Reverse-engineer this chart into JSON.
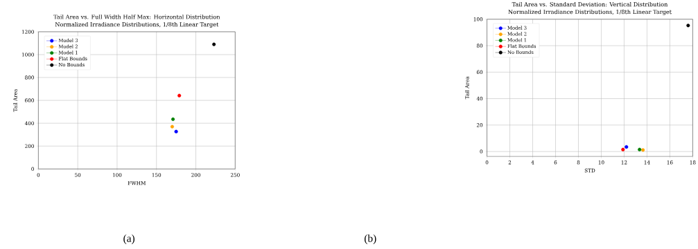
{
  "chart_data": [
    {
      "type": "scatter",
      "title": "Tail Area vs. Full Width Half Max: Horizontal Distribution",
      "subtitle": "Normalized Irradiance Distributions, 1/8th Linear Target",
      "xlabel": "FWHM",
      "ylabel": "Tail Area",
      "xlim": [
        0,
        250
      ],
      "ylim": [
        0,
        1200
      ],
      "xticks": [
        0,
        50,
        100,
        150,
        200,
        250
      ],
      "yticks": [
        0,
        200,
        400,
        600,
        800,
        1000,
        1200
      ],
      "grid": true,
      "legend": "top left",
      "marker": "circle",
      "annotations": [
        "(a)"
      ],
      "series": [
        {
          "name": "Model 3",
          "color": "#0000ff",
          "x": [
            175
          ],
          "values": [
            327
          ]
        },
        {
          "name": "Model 2",
          "color": "#ffa500",
          "x": [
            170
          ],
          "values": [
            370
          ]
        },
        {
          "name": "Model 1",
          "color": "#008000",
          "x": [
            171
          ],
          "values": [
            435
          ]
        },
        {
          "name": "Flat Bounds",
          "color": "#ff0000",
          "x": [
            179
          ],
          "values": [
            642
          ]
        },
        {
          "name": "No Bounds",
          "color": "#000000",
          "x": [
            223
          ],
          "values": [
            1090
          ]
        }
      ]
    },
    {
      "type": "scatter",
      "title": "Tail Area vs. Standard Deviation: Vertical Distribution",
      "subtitle": "Normalized Irradiance Distributions, 1/8th Linear Target",
      "xlabel": "STD",
      "ylabel": "Tail Area",
      "xlim": [
        0,
        18
      ],
      "ylim": [
        -3.7,
        100
      ],
      "xticks": [
        0,
        2,
        4,
        6,
        8,
        10,
        12,
        14,
        16,
        18
      ],
      "yticks": [
        0,
        20,
        40,
        60,
        80,
        100
      ],
      "grid": true,
      "legend": "top left",
      "marker": "circle",
      "annotations": [
        "(b)"
      ],
      "series": [
        {
          "name": "Model 3",
          "color": "#0000ff",
          "x": [
            12.2
          ],
          "values": [
            3.5
          ]
        },
        {
          "name": "Model 2",
          "color": "#ffa500",
          "x": [
            13.65
          ],
          "values": [
            1.2
          ]
        },
        {
          "name": "Model 1",
          "color": "#008000",
          "x": [
            13.35
          ],
          "values": [
            1.5
          ]
        },
        {
          "name": "Flat Bounds",
          "color": "#ff0000",
          "x": [
            11.9
          ],
          "values": [
            1.5
          ]
        },
        {
          "name": "No Bounds",
          "color": "#000000",
          "x": [
            17.6
          ],
          "values": [
            95.3
          ]
        }
      ]
    }
  ]
}
